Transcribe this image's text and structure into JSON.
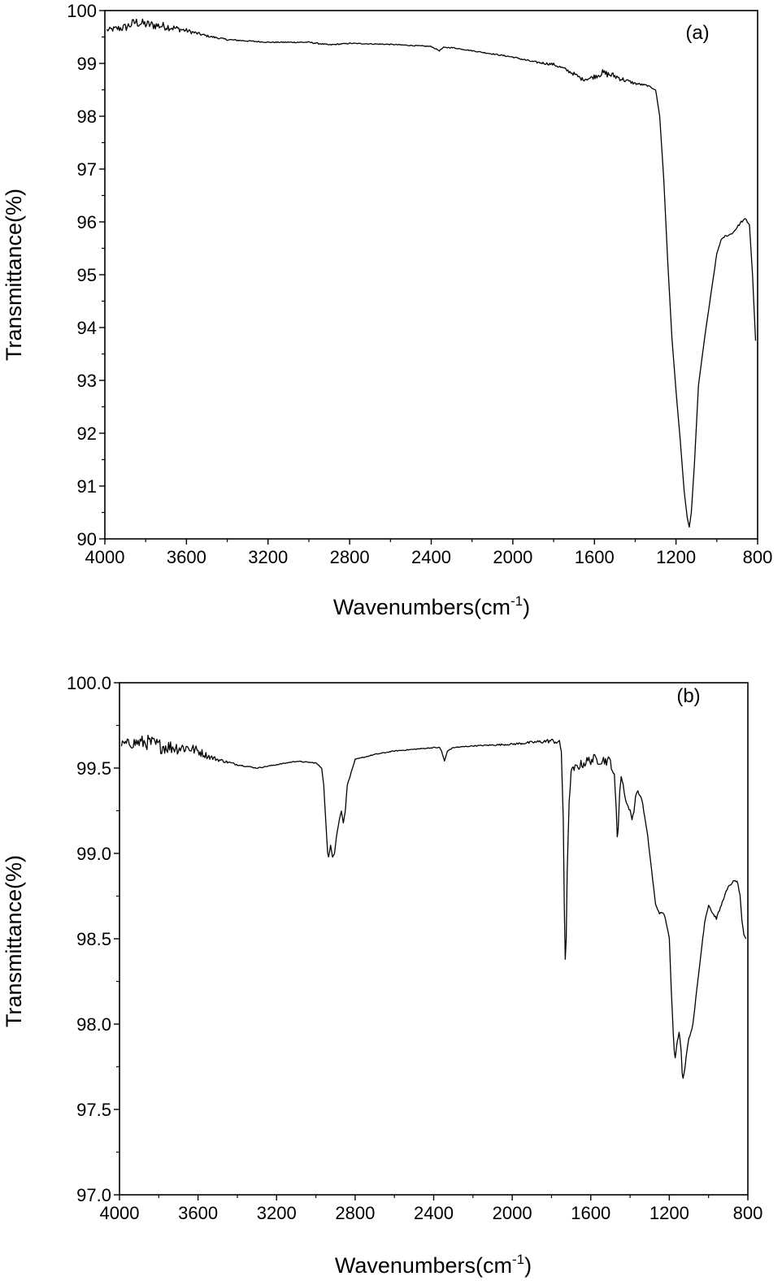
{
  "chart_data": [
    {
      "type": "line",
      "panel_label": "(a)",
      "xlabel_main": "Wavenumbers(cm",
      "xlabel_sup": "-1",
      "xlabel_end": ")",
      "ylabel": "Transmittance(%)",
      "xlim": [
        4000,
        800
      ],
      "ylim": [
        90,
        100
      ],
      "x_ticks": [
        "4000",
        "3600",
        "3200",
        "2800",
        "2400",
        "2000",
        "1600",
        "1200",
        "800"
      ],
      "x_tick_values": [
        4000,
        3600,
        3200,
        2800,
        2400,
        2000,
        1600,
        1200,
        800
      ],
      "y_ticks": [
        "90",
        "91",
        "92",
        "93",
        "94",
        "95",
        "96",
        "97",
        "98",
        "99",
        "100"
      ],
      "y_tick_values": [
        90,
        91,
        92,
        93,
        94,
        95,
        96,
        97,
        98,
        99,
        100
      ],
      "series": [
        {
          "color": "#000000",
          "x": [
            3990,
            3900,
            3850,
            3800,
            3700,
            3600,
            3500,
            3400,
            3200,
            3000,
            2900,
            2800,
            2600,
            2400,
            2360,
            2340,
            2300,
            2200,
            2000,
            1900,
            1800,
            1750,
            1700,
            1660,
            1620,
            1560,
            1500,
            1450,
            1400,
            1340,
            1300,
            1280,
            1260,
            1240,
            1220,
            1200,
            1180,
            1160,
            1145,
            1135,
            1125,
            1110,
            1090,
            1060,
            1030,
            1000,
            980,
            960,
            940,
            920,
            900,
            880,
            860,
            840,
            825,
            810
          ],
          "y": [
            99.63,
            99.68,
            99.78,
            99.74,
            99.7,
            99.62,
            99.52,
            99.45,
            99.4,
            99.4,
            99.35,
            99.38,
            99.36,
            99.32,
            99.24,
            99.3,
            99.3,
            99.24,
            99.12,
            99.03,
            98.98,
            98.9,
            98.8,
            98.7,
            98.72,
            98.82,
            98.76,
            98.68,
            98.62,
            98.58,
            98.5,
            98.0,
            96.8,
            95.2,
            93.8,
            92.8,
            91.9,
            90.9,
            90.4,
            90.22,
            90.5,
            91.4,
            92.9,
            93.8,
            94.6,
            95.4,
            95.65,
            95.73,
            95.75,
            95.8,
            95.9,
            96.0,
            96.05,
            95.95,
            95.0,
            93.75
          ],
          "noise": [
            1.4,
            2.8,
            3.2,
            3.0,
            2.6,
            1.4,
            0.7,
            0.5,
            0.3,
            0.4,
            0.4,
            0.3,
            0.3,
            0.3,
            0.3,
            0.3,
            0.3,
            0.3,
            0.4,
            0.6,
            0.9,
            1.1,
            1.2,
            1.2,
            1.3,
            2.2,
            2.0,
            1.4,
            0.8,
            0.5,
            0.3,
            0.2,
            0.1,
            0.1,
            0.1,
            0.1,
            0.1,
            0.1,
            0.1,
            0.1,
            0.1,
            0.1,
            0.1,
            0.2,
            0.3,
            0.3,
            0.4,
            0.5,
            0.5,
            0.6,
            0.7,
            0.7,
            0.7,
            0.6,
            0.4,
            0.2
          ]
        }
      ]
    },
    {
      "type": "line",
      "panel_label": "(b)",
      "xlabel_main": "Wavenumbers(cm",
      "xlabel_sup": "-1",
      "xlabel_end": ")",
      "ylabel": "Transmittance(%)",
      "xlim": [
        4000,
        800
      ],
      "ylim": [
        97.0,
        100.0
      ],
      "x_ticks": [
        "4000",
        "3600",
        "3200",
        "2800",
        "2400",
        "2000",
        "1600",
        "1200",
        "800"
      ],
      "x_tick_values": [
        4000,
        3600,
        3200,
        2800,
        2400,
        2000,
        1600,
        1200,
        800
      ],
      "y_ticks": [
        "97.0",
        "97.5",
        "98.0",
        "98.5",
        "99.0",
        "99.5",
        "100.0"
      ],
      "y_tick_values": [
        97.0,
        97.5,
        98.0,
        98.5,
        99.0,
        99.5,
        100.0
      ],
      "series": [
        {
          "color": "#000000",
          "x": [
            3990,
            3900,
            3850,
            3800,
            3700,
            3650,
            3600,
            3550,
            3500,
            3400,
            3300,
            3200,
            3100,
            3000,
            2970,
            2960,
            2950,
            2940,
            2935,
            2925,
            2915,
            2905,
            2895,
            2880,
            2870,
            2860,
            2850,
            2840,
            2800,
            2700,
            2600,
            2500,
            2400,
            2370,
            2360,
            2345,
            2330,
            2300,
            2200,
            2000,
            1900,
            1800,
            1760,
            1750,
            1740,
            1735,
            1730,
            1725,
            1720,
            1710,
            1700,
            1680,
            1650,
            1600,
            1550,
            1500,
            1480,
            1470,
            1465,
            1460,
            1455,
            1450,
            1445,
            1435,
            1420,
            1400,
            1390,
            1380,
            1375,
            1370,
            1360,
            1340,
            1310,
            1290,
            1270,
            1250,
            1230,
            1220,
            1200,
            1190,
            1180,
            1175,
            1170,
            1165,
            1160,
            1150,
            1140,
            1135,
            1130,
            1120,
            1110,
            1100,
            1090,
            1080,
            1060,
            1040,
            1020,
            1000,
            980,
            960,
            940,
            920,
            900,
            880,
            860,
            850,
            840,
            830,
            820,
            810
          ],
          "y": [
            99.64,
            99.65,
            99.65,
            99.63,
            99.62,
            99.62,
            99.6,
            99.57,
            99.55,
            99.52,
            99.5,
            99.52,
            99.54,
            99.53,
            99.5,
            99.4,
            99.2,
            99.0,
            98.98,
            99.05,
            98.98,
            99.0,
            99.1,
            99.2,
            99.25,
            99.18,
            99.25,
            99.4,
            99.55,
            99.58,
            99.6,
            99.61,
            99.62,
            99.62,
            99.6,
            99.54,
            99.6,
            99.62,
            99.63,
            99.64,
            99.65,
            99.66,
            99.65,
            99.6,
            99.2,
            98.7,
            98.38,
            98.5,
            98.9,
            99.3,
            99.48,
            99.5,
            99.52,
            99.55,
            99.55,
            99.54,
            99.45,
            99.25,
            99.1,
            99.15,
            99.3,
            99.4,
            99.45,
            99.4,
            99.3,
            99.25,
            99.2,
            99.25,
            99.3,
            99.35,
            99.36,
            99.32,
            99.1,
            98.9,
            98.7,
            98.65,
            98.65,
            98.62,
            98.5,
            98.2,
            97.95,
            97.85,
            97.8,
            97.85,
            97.9,
            97.95,
            97.85,
            97.72,
            97.68,
            97.75,
            97.85,
            97.92,
            97.95,
            98.0,
            98.2,
            98.4,
            98.6,
            98.7,
            98.65,
            98.62,
            98.68,
            98.75,
            98.8,
            98.83,
            98.84,
            98.82,
            98.75,
            98.6,
            98.52,
            98.5
          ],
          "noise": [
            2.5,
            4.5,
            5.0,
            5.0,
            4.5,
            4.0,
            3.0,
            2.0,
            1.2,
            0.5,
            0.3,
            0.3,
            0.3,
            0.3,
            0.3,
            0.3,
            0.3,
            0.3,
            0.3,
            0.3,
            0.3,
            0.3,
            0.3,
            0.3,
            0.3,
            0.3,
            0.3,
            0.3,
            0.3,
            0.3,
            0.3,
            0.3,
            0.3,
            0.3,
            0.3,
            0.3,
            0.3,
            0.3,
            0.3,
            0.6,
            0.9,
            1.5,
            1.5,
            1.0,
            0.3,
            0.2,
            0.2,
            0.2,
            0.3,
            0.8,
            2.0,
            2.5,
            3.0,
            3.5,
            3.5,
            3.0,
            2.0,
            1.0,
            0.8,
            0.8,
            1.2,
            1.5,
            1.5,
            1.2,
            1.0,
            0.8,
            0.8,
            0.8,
            0.8,
            0.8,
            0.8,
            0.8,
            0.6,
            0.5,
            0.5,
            0.5,
            0.5,
            0.5,
            0.5,
            0.5,
            0.5,
            0.5,
            0.5,
            0.5,
            0.5,
            0.5,
            0.5,
            0.5,
            0.5,
            0.5,
            0.5,
            0.5,
            0.5,
            0.5,
            0.6,
            0.8,
            0.8,
            0.8,
            0.8,
            0.8,
            0.8,
            0.8,
            0.8,
            0.8,
            0.8,
            0.8,
            0.8,
            0.8,
            0.6,
            0.5
          ]
        }
      ]
    }
  ]
}
